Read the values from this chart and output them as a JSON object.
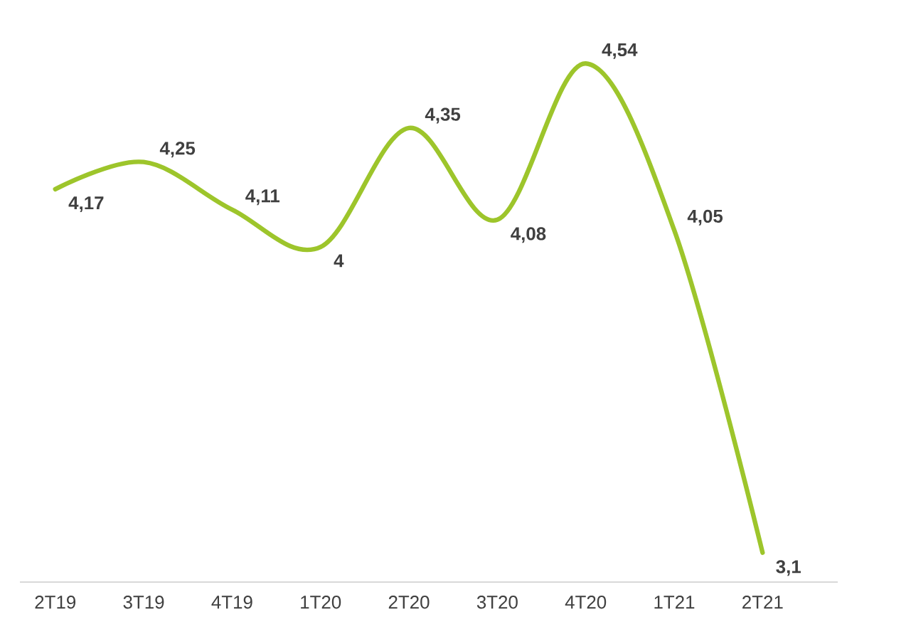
{
  "chart_data": {
    "type": "line",
    "categories": [
      "2T19",
      "3T19",
      "4T19",
      "1T20",
      "2T20",
      "3T20",
      "4T20",
      "1T21",
      "2T21"
    ],
    "series": [
      {
        "color": "#9dc52b",
        "values": [
          4.17,
          4.25,
          4.11,
          4.0,
          4.35,
          4.08,
          4.54,
          4.05,
          3.1
        ],
        "value_labels": [
          "4,17",
          "4,25",
          "4,11",
          "4",
          "4,35",
          "4,08",
          "4,54",
          "4,05",
          "3,1"
        ]
      }
    ],
    "marker": "none",
    "line_style": "solid"
  }
}
